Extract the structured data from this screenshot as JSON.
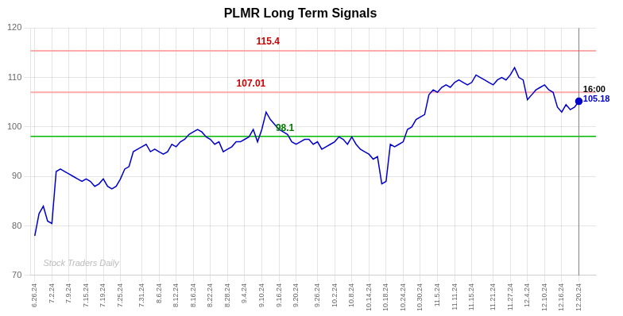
{
  "chart_data": {
    "type": "line",
    "title": "PLMR Long Term Signals",
    "x": [
      0,
      1,
      2,
      3,
      4,
      5,
      6,
      7,
      8,
      9,
      10,
      11,
      12,
      13,
      14,
      15,
      16,
      17,
      18,
      19,
      20,
      21,
      22,
      23,
      24,
      25,
      26,
      27,
      28,
      29,
      30,
      31,
      32,
      33,
      34,
      35,
      36,
      37,
      38,
      39,
      40,
      41,
      42,
      43,
      44,
      45,
      46,
      47,
      48,
      49,
      50,
      51,
      52,
      53,
      54,
      55,
      56,
      57,
      58,
      59,
      60,
      61,
      62,
      63,
      64,
      65,
      66,
      67,
      68,
      69,
      70,
      71,
      72,
      73,
      74,
      75,
      76,
      77,
      78,
      79,
      80,
      81,
      82,
      83,
      84,
      85,
      86,
      87,
      88,
      89,
      90,
      91,
      92,
      93,
      94,
      95,
      96,
      97,
      98,
      99,
      100,
      101,
      102,
      103,
      104,
      105,
      106,
      107,
      108,
      109,
      110,
      111,
      112,
      113,
      114,
      115,
      116,
      117,
      118,
      119,
      120,
      121,
      122,
      123,
      124,
      125,
      126,
      127
    ],
    "values": [
      78.0,
      82.5,
      84.0,
      81.0,
      80.5,
      91.0,
      91.5,
      91.0,
      90.5,
      90.0,
      89.5,
      89.0,
      89.5,
      89.0,
      88.0,
      88.5,
      89.5,
      88.0,
      87.5,
      88.0,
      89.5,
      91.5,
      92.0,
      95.0,
      95.5,
      96.0,
      96.5,
      95.0,
      95.5,
      95.0,
      94.5,
      95.0,
      96.5,
      96.0,
      97.0,
      97.5,
      98.5,
      99.0,
      99.5,
      99.0,
      98.0,
      97.5,
      96.5,
      97.0,
      95.0,
      95.5,
      96.0,
      97.0,
      97.0,
      97.5,
      98.0,
      99.5,
      97.0,
      99.5,
      103.0,
      101.5,
      100.5,
      99.5,
      99.0,
      98.5,
      97.0,
      96.5,
      97.0,
      97.5,
      97.5,
      96.5,
      97.0,
      95.5,
      96.0,
      96.5,
      97.0,
      98.0,
      97.5,
      96.5,
      98.0,
      96.5,
      95.5,
      95.0,
      94.5,
      93.5,
      94.0,
      88.5,
      89.0,
      96.5,
      96.0,
      96.5,
      97.0,
      99.5,
      100.0,
      101.5,
      102.0,
      102.5,
      106.5,
      107.5,
      107.0,
      108.0,
      108.5,
      108.0,
      109.0,
      109.5,
      109.0,
      108.5,
      109.0,
      110.5,
      110.0,
      109.5,
      109.0,
      108.5,
      109.5,
      110.0,
      109.5,
      110.5,
      112.0,
      110.0,
      109.5,
      105.5,
      106.5,
      107.5,
      108.0,
      108.5,
      107.5,
      107.0,
      104.0,
      103.0,
      104.5,
      103.5,
      104.0,
      105.18
    ],
    "color": "#0000cc",
    "last_marker_color": "#0000cc",
    "vline_color": "gray",
    "xlim": [
      -1,
      131
    ],
    "xticks": [
      {
        "value": 0,
        "label": "6.26.24"
      },
      {
        "value": 4,
        "label": "7.2.24"
      },
      {
        "value": 8,
        "label": "7.9.24"
      },
      {
        "value": 12,
        "label": "7.15.24"
      },
      {
        "value": 16,
        "label": "7.19.24"
      },
      {
        "value": 20,
        "label": "7.25.24"
      },
      {
        "value": 25,
        "label": "7.31.24"
      },
      {
        "value": 29,
        "label": "8.6.24"
      },
      {
        "value": 33,
        "label": "8.12.24"
      },
      {
        "value": 37,
        "label": "8.16.24"
      },
      {
        "value": 41,
        "label": "8.22.24"
      },
      {
        "value": 45,
        "label": "8.28.24"
      },
      {
        "value": 49,
        "label": "9.4.24"
      },
      {
        "value": 53,
        "label": "9.10.24"
      },
      {
        "value": 57,
        "label": "9.16.24"
      },
      {
        "value": 61,
        "label": "9.20.24"
      },
      {
        "value": 66,
        "label": "9.26.24"
      },
      {
        "value": 70,
        "label": "10.2.24"
      },
      {
        "value": 74,
        "label": "10.8.24"
      },
      {
        "value": 78,
        "label": "10.14.24"
      },
      {
        "value": 82,
        "label": "10.18.24"
      },
      {
        "value": 86,
        "label": "10.24.24"
      },
      {
        "value": 90,
        "label": "10.30.24"
      },
      {
        "value": 94,
        "label": "11.5.24"
      },
      {
        "value": 98,
        "label": "11.11.24"
      },
      {
        "value": 102,
        "label": "11.15.24"
      },
      {
        "value": 107,
        "label": "11.21.24"
      },
      {
        "value": 111,
        "label": "11.27.24"
      },
      {
        "value": 115,
        "label": "12.4.24"
      },
      {
        "value": 119,
        "label": "12.10.24"
      },
      {
        "value": 123,
        "label": "12.16.24"
      },
      {
        "value": 127,
        "label": "12.20.24"
      }
    ],
    "ylim": [
      70,
      120
    ],
    "yticks": [
      70,
      80,
      90,
      100,
      110,
      120
    ],
    "grid": true,
    "hlines": [
      {
        "value": 115.4,
        "label": "115.4",
        "color": "#ffaaaa",
        "label_color": "#cc0000"
      },
      {
        "value": 107.01,
        "label": "107.01",
        "color": "#ffaaaa",
        "label_color": "#cc0000"
      },
      {
        "value": 98.1,
        "label": "98.1",
        "color": "#00bb00",
        "label_color": "#007700"
      }
    ],
    "end_labels": [
      {
        "text": "16:00",
        "color": "#000000"
      },
      {
        "text": "105.18",
        "color": "#0000cc"
      }
    ],
    "watermark": {
      "text": "Stock Traders Daily",
      "color": "#bbbbbb"
    }
  }
}
